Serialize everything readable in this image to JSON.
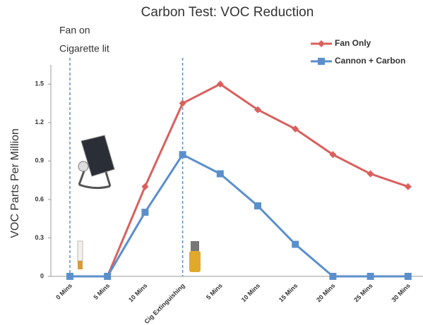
{
  "chart_data": {
    "type": "line",
    "title": "Carbon Test: VOC Reduction",
    "annotations": [
      "Fan on",
      "Cigarette lit"
    ],
    "y_label": "VOC Parts Per Million",
    "categories": [
      "0 Mins",
      "5 Mins",
      "10 Mins",
      "Cig Extinguishing",
      "5 Mins",
      "10 Mins",
      "15 Mins",
      "20 Mins",
      "25 Mins",
      "30 Mins"
    ],
    "series": [
      {
        "name": "Fan Only",
        "color": "#d9605e",
        "marker": "diamond",
        "values": [
          0,
          0,
          0.7,
          1.35,
          1.5,
          1.3,
          1.15,
          0.95,
          0.8,
          0.7
        ]
      },
      {
        "name": "Cannon + Carbon",
        "color": "#5b8fcc",
        "marker": "square",
        "values": [
          0,
          0,
          0.5,
          0.95,
          0.8,
          0.55,
          0.25,
          0,
          0,
          0
        ]
      }
    ],
    "ylim": [
      0,
      1.65
    ],
    "yticks": [
      0,
      0.3,
      0.6,
      0.9,
      1.2,
      1.5
    ],
    "legend": "top-right"
  }
}
